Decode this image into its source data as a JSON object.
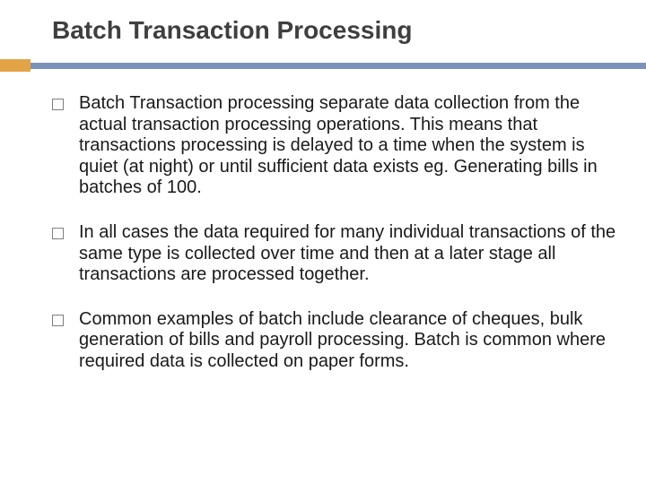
{
  "slide": {
    "title": "Batch Transaction Processing",
    "title_color": "#3f3f3f",
    "title_fontsize": 28,
    "accent_orange": "#e3a447",
    "accent_blue": "#7a92b9",
    "background_color": "#ffffff",
    "body_fontsize": 20,
    "body_color": "#1a1a1a",
    "bullet_marker": {
      "shape": "square-outline",
      "size": 11,
      "border_color": "#7f7f7f"
    },
    "bullets": [
      {
        "lead": "Batch Transaction ",
        "body": "processing separate data collection from the actual transaction processing operations. This means that transactions processing is delayed to a time when the system is quiet (at night) or until sufficient data exists eg. Generating bills in batches of 100."
      },
      {
        "lead": "",
        "body": "In all cases the data required for many individual transactions of the same type is collected over time and then at a later stage all transactions are processed together."
      },
      {
        "lead": "",
        "body": "Common examples of batch include clearance of cheques, bulk generation of bills and payroll processing. Batch is common where required data is collected on paper forms."
      }
    ]
  }
}
